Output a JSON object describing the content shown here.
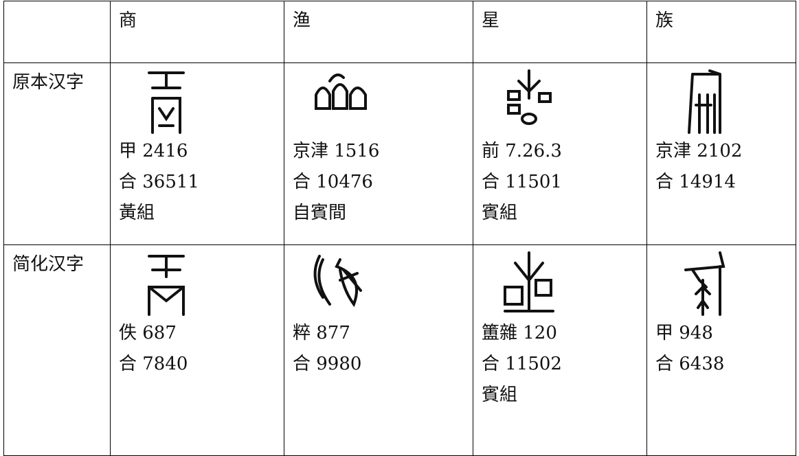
{
  "table": {
    "columns": [
      "商",
      "渔",
      "星",
      "族"
    ],
    "rows": [
      {
        "label": "原本汉字",
        "cells": [
          [
            "甲 2416",
            "合 36511",
            "黃組"
          ],
          [
            "京津 1516",
            "合 10476",
            "自賓間"
          ],
          [
            "前 7.26.3",
            "合 11501",
            "賓組"
          ],
          [
            "京津 2102",
            "合 14914"
          ]
        ]
      },
      {
        "label": "简化汉字",
        "cells": [
          [
            "佚 687",
            "合 7840"
          ],
          [
            "粹 877",
            "合 9980"
          ],
          [
            "簠雜 120",
            "合 11502",
            "賓組"
          ],
          [
            "甲 948",
            "合 6438"
          ]
        ]
      }
    ]
  }
}
